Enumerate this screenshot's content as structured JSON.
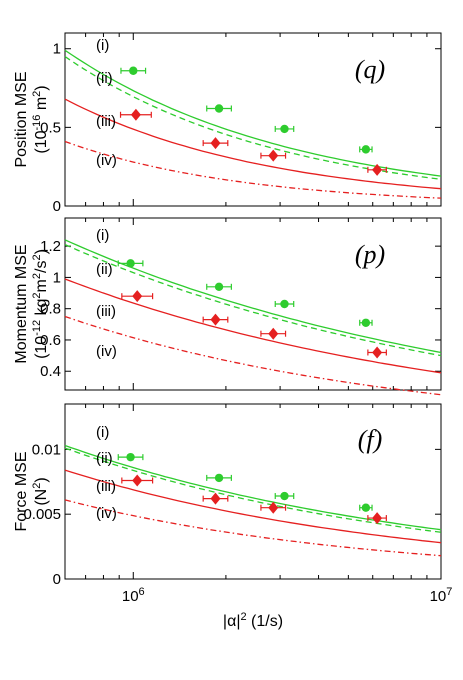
{
  "chart_data": [
    {
      "type": "scatter",
      "panel_label": "(q)",
      "ylabel": "Position MSE",
      "ylabel_units": "(10^{-16} m^2)",
      "ylim": [
        0,
        1.1
      ],
      "yticks": [
        0,
        0.5,
        1
      ],
      "ytick_labels": [
        "0",
        "0.5",
        "1"
      ],
      "xlim": [
        600000,
        10000000
      ],
      "xscale": "log",
      "curve_labels": [
        "(i)",
        "(ii)",
        "(iii)",
        "(iv)"
      ],
      "series": [
        {
          "color": "#2ecc2e",
          "kind": "points",
          "x": [
            1000000,
            1900000,
            3100000,
            5700000
          ],
          "y": [
            0.86,
            0.62,
            0.49,
            0.36
          ],
          "xerr": [
            0.04,
            0.04,
            0.03,
            0.02
          ]
        },
        {
          "color": "#e52020",
          "kind": "points",
          "x": [
            1020000,
            1850000,
            2850000,
            6200000
          ],
          "y": [
            0.58,
            0.4,
            0.32,
            0.23
          ],
          "xerr": [
            0.05,
            0.04,
            0.04,
            0.03
          ]
        },
        {
          "color": "#2ecc2e",
          "kind": "line",
          "style": "solid",
          "ends": [
            0.99,
            0.19
          ]
        },
        {
          "color": "#2ecc2e",
          "kind": "line",
          "style": "dashed",
          "ends": [
            0.95,
            0.17
          ]
        },
        {
          "color": "#e52020",
          "kind": "line",
          "style": "solid",
          "ends": [
            0.68,
            0.11
          ]
        },
        {
          "color": "#e52020",
          "kind": "line",
          "style": "dashdot",
          "ends": [
            0.41,
            0.05
          ]
        }
      ]
    },
    {
      "type": "scatter",
      "panel_label": "(p)",
      "ylabel": "Momentum MSE",
      "ylabel_units": "(10^{-12} kg^2m^2/s^2)",
      "ylim": [
        0.28,
        1.38
      ],
      "yticks": [
        0.4,
        0.6,
        0.8,
        1,
        1.2
      ],
      "ytick_labels": [
        "0.4",
        "0.6",
        "0.8",
        "1",
        "1.2"
      ],
      "xlim": [
        600000,
        10000000
      ],
      "xscale": "log",
      "curve_labels": [
        "(i)",
        "(ii)",
        "(iii)",
        "(iv)"
      ],
      "series": [
        {
          "color": "#2ecc2e",
          "kind": "points",
          "x": [
            980000,
            1900000,
            3100000,
            5700000
          ],
          "y": [
            1.09,
            0.94,
            0.83,
            0.71
          ],
          "xerr": [
            0.04,
            0.04,
            0.03,
            0.02
          ]
        },
        {
          "color": "#e52020",
          "kind": "points",
          "x": [
            1030000,
            1850000,
            2850000,
            6200000
          ],
          "y": [
            0.88,
            0.73,
            0.64,
            0.52
          ],
          "xerr": [
            0.05,
            0.04,
            0.04,
            0.03
          ]
        },
        {
          "color": "#2ecc2e",
          "kind": "line",
          "style": "solid",
          "ends": [
            1.24,
            0.52
          ]
        },
        {
          "color": "#2ecc2e",
          "kind": "line",
          "style": "dashed",
          "ends": [
            1.21,
            0.5
          ]
        },
        {
          "color": "#e52020",
          "kind": "line",
          "style": "solid",
          "ends": [
            0.99,
            0.39
          ]
        },
        {
          "color": "#e52020",
          "kind": "line",
          "style": "dashdot",
          "ends": [
            0.75,
            0.25
          ]
        }
      ]
    },
    {
      "type": "scatter",
      "panel_label": "(f)",
      "ylabel": "Force MSE",
      "ylabel_units": "(N^2)",
      "ylim": [
        0,
        0.0135
      ],
      "yticks": [
        0,
        0.005,
        0.01
      ],
      "ytick_labels": [
        "0",
        "0.005",
        "0.01"
      ],
      "xlim": [
        600000,
        10000000
      ],
      "xscale": "log",
      "xticks": [
        1000000,
        10000000
      ],
      "xtick_labels": [
        "10^6",
        "10^7"
      ],
      "xlabel": "|α|^2 (1/s)",
      "curve_labels": [
        "(i)",
        "(ii)",
        "(iii)",
        "(iv)"
      ],
      "series": [
        {
          "color": "#2ecc2e",
          "kind": "points",
          "x": [
            980000,
            1900000,
            3100000,
            5700000
          ],
          "y": [
            0.0094,
            0.0078,
            0.0064,
            0.0055
          ],
          "xerr": [
            0.04,
            0.04,
            0.03,
            0.02
          ]
        },
        {
          "color": "#e52020",
          "kind": "points",
          "x": [
            1030000,
            1850000,
            2850000,
            6200000
          ],
          "y": [
            0.0076,
            0.0062,
            0.0055,
            0.0047
          ],
          "xerr": [
            0.05,
            0.04,
            0.04,
            0.03
          ]
        },
        {
          "color": "#2ecc2e",
          "kind": "line",
          "style": "solid",
          "ends": [
            0.0103,
            0.0038
          ]
        },
        {
          "color": "#2ecc2e",
          "kind": "line",
          "style": "dashed",
          "ends": [
            0.0101,
            0.0036
          ]
        },
        {
          "color": "#e52020",
          "kind": "line",
          "style": "solid",
          "ends": [
            0.0084,
            0.0028
          ]
        },
        {
          "color": "#e52020",
          "kind": "line",
          "style": "dashdot",
          "ends": [
            0.0061,
            0.0018
          ]
        }
      ]
    }
  ]
}
